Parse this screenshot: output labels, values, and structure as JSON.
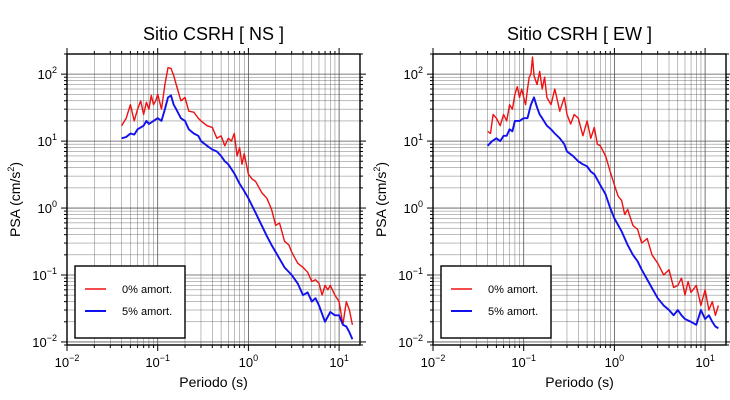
{
  "chart_data": [
    {
      "type": "line",
      "title": "Sitio CSRH [ NS ]",
      "xlabel": "Periodo (s)",
      "ylabel_base": "PSA (cm/s",
      "ylabel_sup": "2",
      "ylabel_end": ")",
      "x_scale": "log",
      "y_scale": "log",
      "xlim": [
        0.01,
        17
      ],
      "ylim": [
        0.009,
        200
      ],
      "grid": true,
      "legend_position": "bottom-left",
      "x_ticks": [
        {
          "value": 0.01,
          "base": "10",
          "exp": "−2"
        },
        {
          "value": 0.1,
          "base": "10",
          "exp": "−1"
        },
        {
          "value": 1,
          "base": "10",
          "exp": "0"
        },
        {
          "value": 10,
          "base": "10",
          "exp": "1"
        }
      ],
      "y_ticks": [
        {
          "value": 0.01,
          "base": "10",
          "exp": "−2"
        },
        {
          "value": 0.1,
          "base": "10",
          "exp": "−1"
        },
        {
          "value": 1,
          "base": "10",
          "exp": "0"
        },
        {
          "value": 10,
          "base": "10",
          "exp": "1"
        },
        {
          "value": 100,
          "base": "10",
          "exp": "2"
        }
      ],
      "series": [
        {
          "name": "0% amort.",
          "color": "#ee1111",
          "x": [
            0.04,
            0.045,
            0.05,
            0.055,
            0.06,
            0.065,
            0.07,
            0.075,
            0.08,
            0.085,
            0.09,
            0.095,
            0.1,
            0.11,
            0.12,
            0.13,
            0.14,
            0.15,
            0.16,
            0.18,
            0.2,
            0.22,
            0.25,
            0.28,
            0.3,
            0.35,
            0.4,
            0.45,
            0.5,
            0.55,
            0.6,
            0.65,
            0.7,
            0.75,
            0.8,
            0.85,
            0.9,
            1.0,
            1.1,
            1.2,
            1.4,
            1.6,
            1.8,
            2.0,
            2.2,
            2.5,
            2.8,
            3.0,
            3.5,
            4.0,
            4.5,
            5.0,
            5.5,
            6.0,
            6.5,
            7.0,
            7.5,
            8.0,
            9.0,
            10.0,
            11.0,
            12.0,
            13.0,
            14.0
          ],
          "y": [
            17,
            22,
            35,
            20,
            30,
            40,
            25,
            38,
            30,
            48,
            35,
            40,
            50,
            30,
            70,
            125,
            122,
            95,
            70,
            40,
            45,
            28,
            27,
            22,
            20,
            17,
            16,
            11,
            12,
            8.5,
            11,
            10,
            13,
            6,
            8,
            4.5,
            6.5,
            3.2,
            2.7,
            2.5,
            1.7,
            1.4,
            0.95,
            0.55,
            0.6,
            0.32,
            0.28,
            0.22,
            0.15,
            0.13,
            0.11,
            0.08,
            0.085,
            0.075,
            0.05,
            0.07,
            0.06,
            0.07,
            0.05,
            0.04,
            0.018,
            0.04,
            0.03,
            0.018
          ]
        },
        {
          "name": "5% amort.",
          "color": "#1111ee",
          "x": [
            0.04,
            0.045,
            0.05,
            0.055,
            0.06,
            0.065,
            0.07,
            0.075,
            0.08,
            0.09,
            0.1,
            0.11,
            0.12,
            0.13,
            0.14,
            0.15,
            0.16,
            0.18,
            0.2,
            0.22,
            0.25,
            0.28,
            0.3,
            0.35,
            0.4,
            0.45,
            0.5,
            0.55,
            0.6,
            0.7,
            0.8,
            0.9,
            1.0,
            1.2,
            1.4,
            1.6,
            1.8,
            2.0,
            2.5,
            3.0,
            3.5,
            4.0,
            4.5,
            5.0,
            5.5,
            6.0,
            7.0,
            8.0,
            9.0,
            10.0,
            11.0,
            12.0,
            13.0,
            14.0
          ],
          "y": [
            11,
            11.5,
            13,
            12.5,
            15,
            16,
            17,
            20,
            18,
            20,
            22,
            20,
            30,
            45,
            48,
            35,
            30,
            22,
            20,
            15,
            13,
            12,
            10,
            8.5,
            7.5,
            7,
            6,
            5,
            4.5,
            3.3,
            2.3,
            1.8,
            1.4,
            0.85,
            0.55,
            0.38,
            0.28,
            0.22,
            0.13,
            0.1,
            0.075,
            0.05,
            0.055,
            0.04,
            0.045,
            0.035,
            0.02,
            0.028,
            0.025,
            0.025,
            0.018,
            0.017,
            0.014,
            0.011
          ]
        }
      ]
    },
    {
      "type": "line",
      "title": "Sitio CSRH [ EW ]",
      "xlabel": "Periodo (s)",
      "ylabel_base": "PSA (cm/s",
      "ylabel_sup": "2",
      "ylabel_end": ")",
      "x_scale": "log",
      "y_scale": "log",
      "xlim": [
        0.01,
        17
      ],
      "ylim": [
        0.009,
        200
      ],
      "grid": true,
      "legend_position": "bottom-left",
      "x_ticks": [
        {
          "value": 0.01,
          "base": "10",
          "exp": "−2"
        },
        {
          "value": 0.1,
          "base": "10",
          "exp": "−1"
        },
        {
          "value": 1,
          "base": "10",
          "exp": "0"
        },
        {
          "value": 10,
          "base": "10",
          "exp": "1"
        }
      ],
      "y_ticks": [
        {
          "value": 0.01,
          "base": "10",
          "exp": "−2"
        },
        {
          "value": 0.1,
          "base": "10",
          "exp": "−1"
        },
        {
          "value": 1,
          "base": "10",
          "exp": "0"
        },
        {
          "value": 10,
          "base": "10",
          "exp": "1"
        },
        {
          "value": 100,
          "base": "10",
          "exp": "2"
        }
      ],
      "series": [
        {
          "name": "0% amort.",
          "color": "#ee1111",
          "x": [
            0.04,
            0.043,
            0.046,
            0.05,
            0.055,
            0.06,
            0.065,
            0.07,
            0.075,
            0.08,
            0.085,
            0.09,
            0.095,
            0.1,
            0.105,
            0.11,
            0.115,
            0.12,
            0.125,
            0.13,
            0.14,
            0.15,
            0.16,
            0.17,
            0.18,
            0.2,
            0.22,
            0.25,
            0.28,
            0.3,
            0.33,
            0.36,
            0.4,
            0.45,
            0.5,
            0.55,
            0.6,
            0.65,
            0.7,
            0.8,
            0.9,
            1.0,
            1.1,
            1.2,
            1.3,
            1.4,
            1.6,
            1.8,
            2.0,
            2.3,
            2.6,
            3.0,
            3.5,
            4.0,
            4.5,
            5.0,
            5.5,
            6.0,
            6.5,
            7.0,
            8.0,
            9.0,
            10.0,
            11.0,
            12.0,
            13.0,
            14.0
          ],
          "y": [
            14,
            13,
            25,
            22,
            17,
            25,
            20,
            35,
            30,
            50,
            65,
            45,
            60,
            45,
            35,
            60,
            90,
            100,
            180,
            95,
            70,
            110,
            60,
            90,
            45,
            35,
            60,
            28,
            45,
            25,
            18,
            25,
            22,
            12,
            20,
            11,
            16,
            9,
            8.5,
            6,
            3.5,
            2.2,
            1.5,
            1.3,
            0.8,
            0.95,
            0.55,
            0.48,
            0.3,
            0.35,
            0.2,
            0.15,
            0.1,
            0.12,
            0.065,
            0.07,
            0.09,
            0.05,
            0.08,
            0.055,
            0.07,
            0.035,
            0.06,
            0.03,
            0.04,
            0.025,
            0.035
          ]
        },
        {
          "name": "5% amort.",
          "color": "#1111ee",
          "x": [
            0.04,
            0.045,
            0.05,
            0.055,
            0.06,
            0.065,
            0.07,
            0.075,
            0.08,
            0.09,
            0.1,
            0.11,
            0.12,
            0.13,
            0.14,
            0.15,
            0.16,
            0.18,
            0.2,
            0.22,
            0.25,
            0.28,
            0.3,
            0.35,
            0.4,
            0.45,
            0.5,
            0.55,
            0.6,
            0.7,
            0.8,
            0.9,
            1.0,
            1.2,
            1.4,
            1.6,
            1.8,
            2.0,
            2.5,
            3.0,
            3.5,
            4.0,
            4.5,
            5.0,
            5.5,
            6.0,
            7.0,
            8.0,
            9.0,
            10.0,
            11.0,
            12.0,
            13.0,
            14.0
          ],
          "y": [
            8.5,
            10,
            11,
            10,
            12,
            12,
            15,
            14,
            20,
            20,
            22,
            22,
            35,
            45,
            32,
            25,
            22,
            17,
            15,
            13,
            11,
            9,
            7,
            6,
            5,
            4.5,
            4.2,
            3.5,
            3.2,
            2.2,
            1.6,
            1.0,
            0.7,
            0.45,
            0.28,
            0.2,
            0.16,
            0.12,
            0.07,
            0.045,
            0.035,
            0.03,
            0.025,
            0.03,
            0.025,
            0.022,
            0.02,
            0.018,
            0.03,
            0.022,
            0.025,
            0.02,
            0.017,
            0.016
          ]
        }
      ]
    }
  ]
}
